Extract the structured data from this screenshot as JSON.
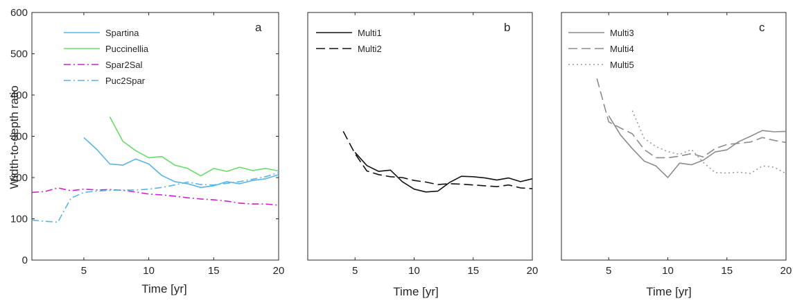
{
  "figure": {
    "ylabel": "Width-to-depth ratio",
    "xlabel": "Time [yr]"
  },
  "chart_data": [
    {
      "type": "line",
      "panel": "a",
      "xlabel": "Time [yr]",
      "ylabel": "Width-to-depth ratio",
      "xlim": [
        1,
        20
      ],
      "ylim": [
        0,
        600
      ],
      "xticks": [
        5,
        10,
        15,
        20
      ],
      "yticks": [
        0,
        100,
        200,
        300,
        400,
        500,
        600
      ],
      "legend_position": "top-left",
      "series": [
        {
          "name": "Spartina",
          "color": "#5ab4e5",
          "dash": "solid",
          "x": [
            5,
            6,
            7,
            8,
            9,
            10,
            11,
            12,
            13,
            14,
            15,
            16,
            17,
            18,
            19,
            20
          ],
          "y": [
            297,
            268,
            233,
            230,
            245,
            233,
            205,
            190,
            185,
            176,
            180,
            190,
            185,
            193,
            197,
            207
          ]
        },
        {
          "name": "Puccinellia",
          "color": "#66dd66",
          "dash": "solid",
          "x": [
            7,
            8,
            9,
            10,
            11,
            12,
            13,
            14,
            15,
            16,
            17,
            18,
            19,
            20
          ],
          "y": [
            347,
            288,
            265,
            248,
            251,
            230,
            222,
            204,
            222,
            215,
            225,
            217,
            222,
            216
          ]
        },
        {
          "name": "Spar2Sal",
          "color": "#cc22cc",
          "dash": "dashdot",
          "x": [
            1,
            2,
            3,
            4,
            5,
            6,
            7,
            8,
            9,
            10,
            11,
            12,
            13,
            14,
            15,
            16,
            17,
            18,
            19,
            20
          ],
          "y": [
            164,
            166,
            175,
            168,
            172,
            170,
            171,
            169,
            165,
            160,
            158,
            155,
            151,
            148,
            146,
            143,
            138,
            136,
            136,
            133
          ]
        },
        {
          "name": "Puc2Spar",
          "color": "#5ab4e5",
          "dash": "dashdot",
          "x": [
            1,
            2,
            3,
            4,
            5,
            6,
            7,
            8,
            9,
            10,
            11,
            12,
            13,
            14,
            15,
            16,
            17,
            18,
            19,
            20
          ],
          "y": [
            97,
            94,
            92,
            150,
            164,
            167,
            169,
            170,
            170,
            172,
            176,
            182,
            189,
            183,
            182,
            186,
            190,
            196,
            202,
            212
          ]
        }
      ]
    },
    {
      "type": "line",
      "panel": "b",
      "xlabel": "Time [yr]",
      "ylabel": "",
      "xlim": [
        1,
        20
      ],
      "ylim": [
        0,
        600
      ],
      "xticks": [
        5,
        10,
        15,
        20
      ],
      "legend_position": "top-left",
      "series": [
        {
          "name": "Multi1",
          "color": "#111111",
          "dash": "solid",
          "x": [
            5,
            6,
            7,
            8,
            9,
            10,
            11,
            12,
            13,
            14,
            15,
            16,
            17,
            18,
            19,
            20
          ],
          "y": [
            261,
            229,
            215,
            218,
            190,
            172,
            165,
            167,
            188,
            203,
            202,
            199,
            194,
            199,
            190,
            197
          ]
        },
        {
          "name": "Multi2",
          "color": "#111111",
          "dash": "dashed",
          "x": [
            4,
            5,
            6,
            7,
            8,
            9,
            10,
            11,
            12,
            13,
            14,
            15,
            16,
            17,
            18,
            19,
            20
          ],
          "y": [
            312,
            258,
            216,
            207,
            202,
            200,
            193,
            189,
            183,
            185,
            184,
            182,
            180,
            178,
            182,
            175,
            173
          ]
        }
      ]
    },
    {
      "type": "line",
      "panel": "c",
      "xlabel": "Time [yr]",
      "ylabel": "",
      "xlim": [
        1,
        20
      ],
      "ylim": [
        0,
        600
      ],
      "xticks": [
        5,
        10,
        15,
        20
      ],
      "legend_position": "top-left",
      "series": [
        {
          "name": "Multi3",
          "color": "#8c8c8c",
          "dash": "solid",
          "x": [
            5,
            6,
            7,
            8,
            9,
            10,
            11,
            12,
            13,
            14,
            15,
            16,
            17,
            18,
            19,
            20
          ],
          "y": [
            350,
            303,
            270,
            240,
            228,
            200,
            235,
            231,
            242,
            262,
            267,
            287,
            300,
            314,
            311,
            312
          ]
        },
        {
          "name": "Multi4",
          "color": "#8c8c8c",
          "dash": "dashed",
          "x": [
            4,
            5,
            6,
            7,
            8,
            9,
            10,
            11,
            12,
            13,
            14,
            15,
            16,
            17,
            18,
            19,
            20
          ],
          "y": [
            440,
            335,
            320,
            306,
            268,
            248,
            248,
            252,
            258,
            250,
            270,
            280,
            283,
            286,
            297,
            290,
            285
          ]
        },
        {
          "name": "Multi5",
          "color": "#9a9a9a",
          "dash": "dotted",
          "x": [
            7,
            8,
            9,
            10,
            11,
            12,
            13,
            14,
            15,
            16,
            17,
            18,
            19,
            20
          ],
          "y": [
            362,
            295,
            275,
            263,
            256,
            268,
            237,
            212,
            211,
            213,
            210,
            228,
            225,
            210
          ]
        }
      ]
    }
  ]
}
